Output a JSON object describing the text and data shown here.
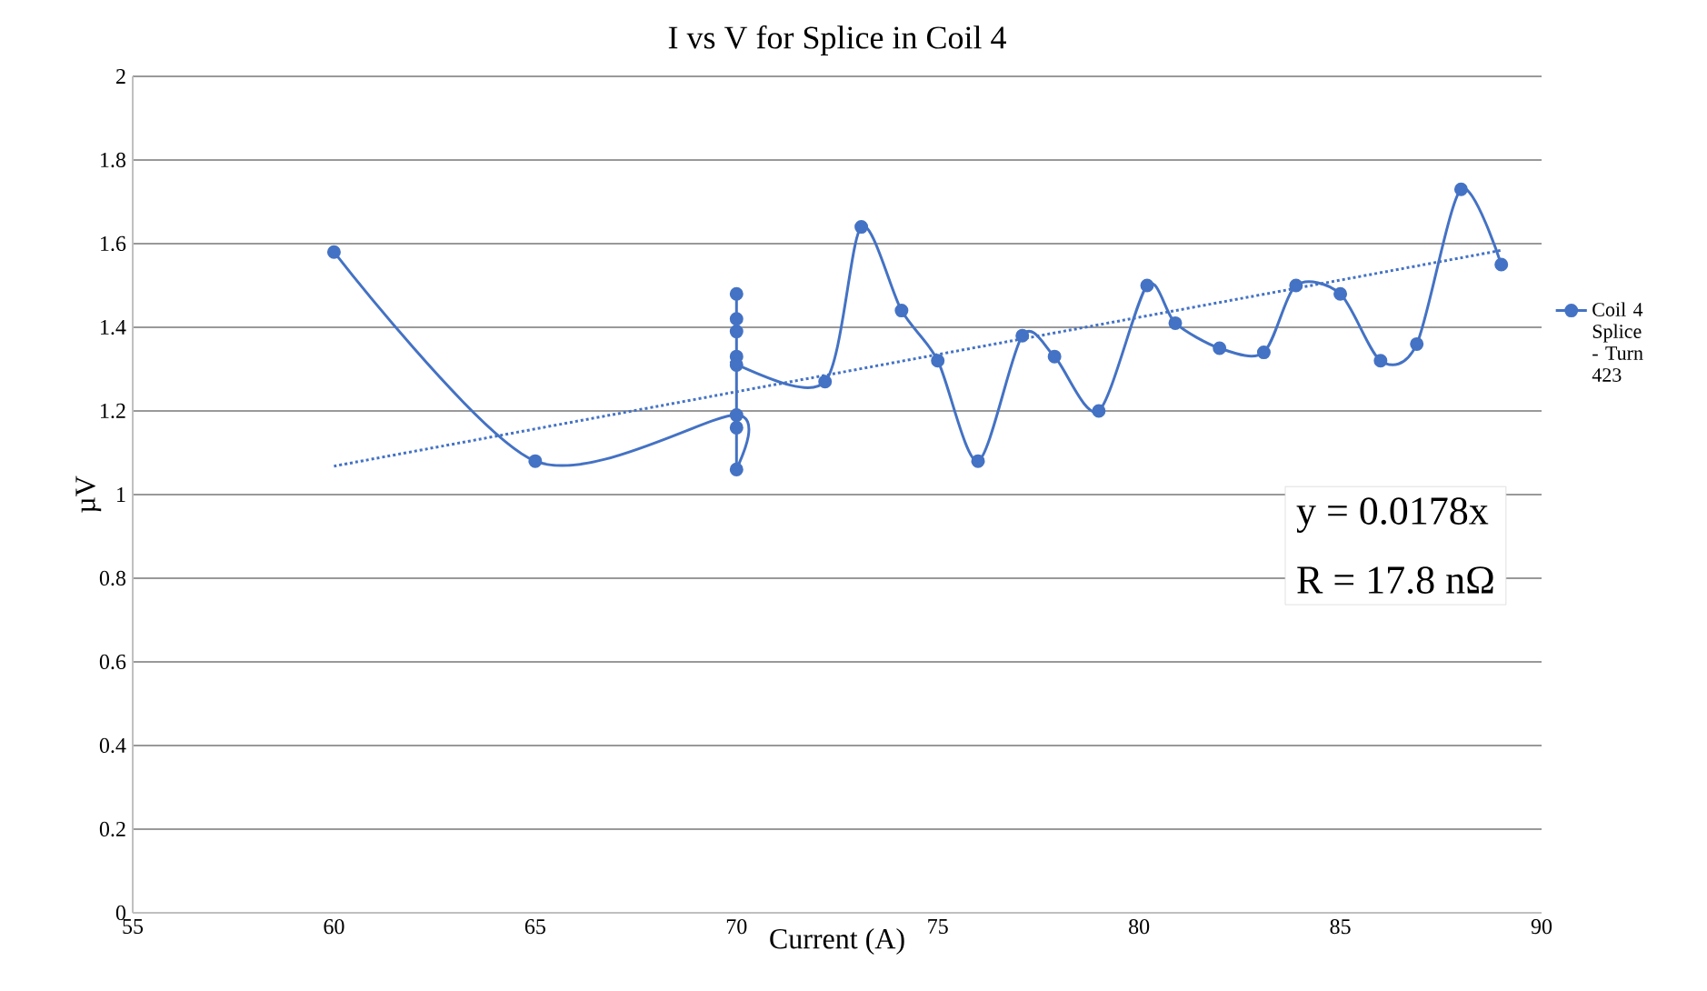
{
  "chart_data": {
    "type": "line",
    "title": "I vs V for Splice in Coil 4",
    "xlabel": "Current (A)",
    "ylabel": "µV",
    "series": [
      {
        "name": "Coil 4 Splice - Turn 423",
        "color": "#4472c4",
        "marker": "circle",
        "line_style": "solid",
        "x": [
          60,
          65,
          70,
          70,
          70,
          70,
          70,
          70,
          70,
          70,
          72.2,
          73.1,
          74.1,
          75,
          76,
          77.1,
          77.9,
          79,
          80.2,
          80.9,
          82,
          83.1,
          83.9,
          85,
          86,
          86.9,
          88,
          89
        ],
        "values": [
          1.58,
          1.08,
          1.19,
          1.06,
          1.16,
          1.48,
          1.42,
          1.39,
          1.33,
          1.31,
          1.27,
          1.64,
          1.44,
          1.32,
          1.08,
          1.38,
          1.33,
          1.2,
          1.5,
          1.41,
          1.35,
          1.34,
          1.5,
          1.48,
          1.32,
          1.36,
          1.73,
          1.55
        ]
      },
      {
        "type": "line",
        "color": "#4472c4",
        "marker": "none",
        "line_style": "dotted",
        "x": [
          60,
          89
        ],
        "values": [
          1.068,
          1.584
        ]
      }
    ],
    "xlim": [
      55,
      90
    ],
    "xticks": [
      55,
      60,
      65,
      70,
      75,
      80,
      85,
      90
    ],
    "ylim": [
      0,
      2
    ],
    "yticks": [
      0,
      0.2,
      0.4,
      0.6,
      0.8,
      1,
      1.2,
      1.4,
      1.6,
      1.8,
      2
    ],
    "grid": "y",
    "legend": "right",
    "annotations": [
      "y = 0.0178x",
      "R = 17.8 nΩ"
    ]
  }
}
